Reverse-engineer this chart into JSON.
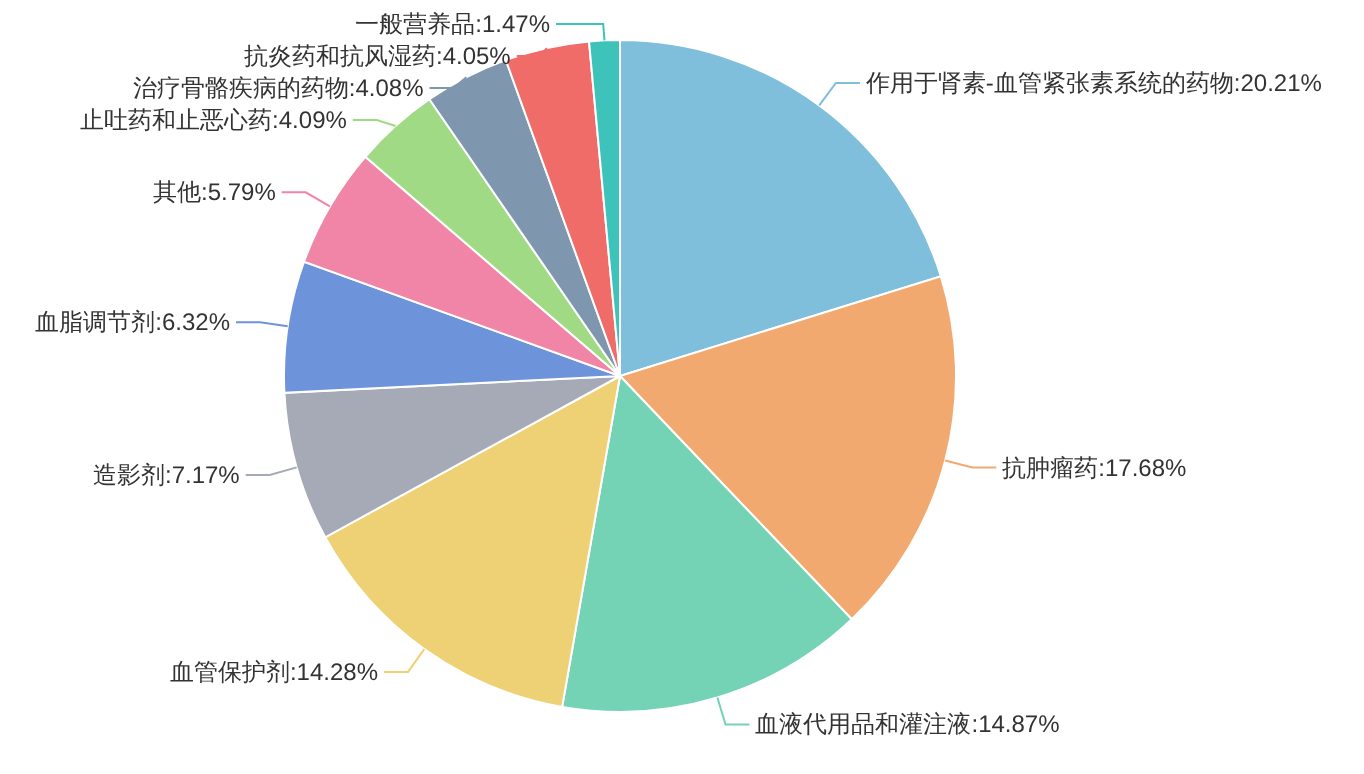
{
  "chart_data": {
    "type": "pie",
    "categories": [
      "作用于肾素-血管紧张素系统的药物",
      "抗肿瘤药",
      "血液代用品和灌注液",
      "血管保护剂",
      "造影剂",
      "血脂调节剂",
      "其他",
      "止吐药和止恶心药",
      "治疗骨骼疾病的药物",
      "抗炎药和抗风湿药",
      "一般营养品"
    ],
    "values": [
      20.21,
      17.68,
      14.87,
      14.28,
      7.17,
      6.32,
      5.79,
      4.09,
      4.08,
      4.05,
      1.47
    ],
    "value_labels": [
      "20.21%",
      "17.68%",
      "14.87%",
      "14.28%",
      "7.17%",
      "6.32%",
      "5.79%",
      "4.09%",
      "4.08%",
      "4.05%",
      "1.47%"
    ],
    "colors": [
      "#7fbfdc",
      "#f2a96f",
      "#74d3b5",
      "#eed075",
      "#a5aab6",
      "#6d93db",
      "#f085a8",
      "#a0da84",
      "#7f97ae",
      "#f06c69",
      "#3ec3bb"
    ],
    "legend": false
  }
}
